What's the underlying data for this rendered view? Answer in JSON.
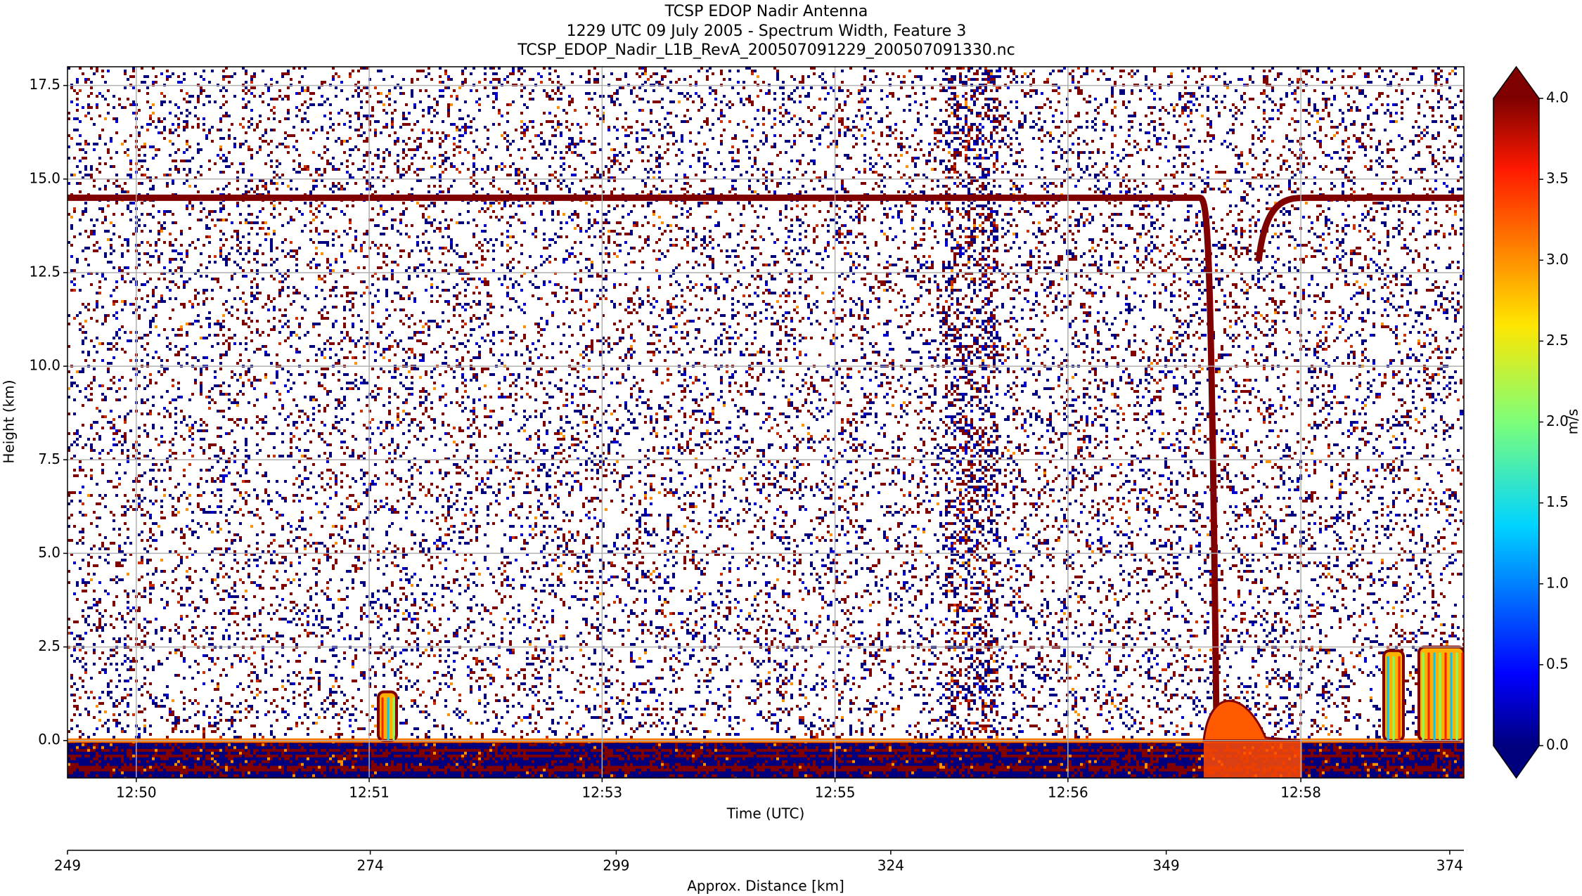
{
  "chart_data": {
    "type": "heatmap",
    "title_lines": [
      "TCSP EDOP Nadir Antenna",
      "1229 UTC 09 July 2005 - Spectrum Width, Feature 3",
      "TCSP_EDOP_Nadir_L1B_RevA_200507091229_200507091330.nc"
    ],
    "xlabel": "Time (UTC)",
    "ylabel": "Height (km)",
    "xlim": [
      49.557,
      58.55
    ],
    "xticks": [
      {
        "value": 50,
        "label": "12:50"
      },
      {
        "value": 51.5,
        "label": "12:51"
      },
      {
        "value": 53,
        "label": "12:53"
      },
      {
        "value": 54.5,
        "label": "12:55"
      },
      {
        "value": 56,
        "label": "12:56"
      },
      {
        "value": 57.5,
        "label": "12:58"
      }
    ],
    "ylim": [
      -1,
      18
    ],
    "yticks": [
      {
        "value": 0,
        "label": "0.0"
      },
      2.5,
      {
        "value": 5,
        "label": "5.0"
      },
      7.5,
      {
        "value": 10,
        "label": "10.0"
      },
      12.5,
      {
        "value": 15,
        "label": "15.0"
      },
      17.5
    ],
    "grid": true,
    "secondary_x": {
      "label": "Approx. Distance [km]",
      "ticks": [
        {
          "value": 49.557,
          "label": "249"
        },
        {
          "value": 51.507,
          "label": "274"
        },
        {
          "value": 53.091,
          "label": "299"
        },
        {
          "value": 54.859,
          "label": "324"
        },
        {
          "value": 56.633,
          "label": "349"
        },
        {
          "value": 58.459,
          "label": "374"
        }
      ]
    },
    "colorbar": {
      "label": "m/s",
      "colormap": "jet",
      "extend": "both",
      "lim": [
        0,
        4
      ],
      "ticks": [
        {
          "value": 0,
          "label": "0.0"
        },
        0.5,
        {
          "value": 1,
          "label": "1.0"
        },
        1.5,
        {
          "value": 2,
          "label": "2.0"
        },
        2.5,
        {
          "value": 3,
          "label": "3.0"
        },
        3.5,
        {
          "value": 4,
          "label": "4.0"
        }
      ]
    }
  }
}
